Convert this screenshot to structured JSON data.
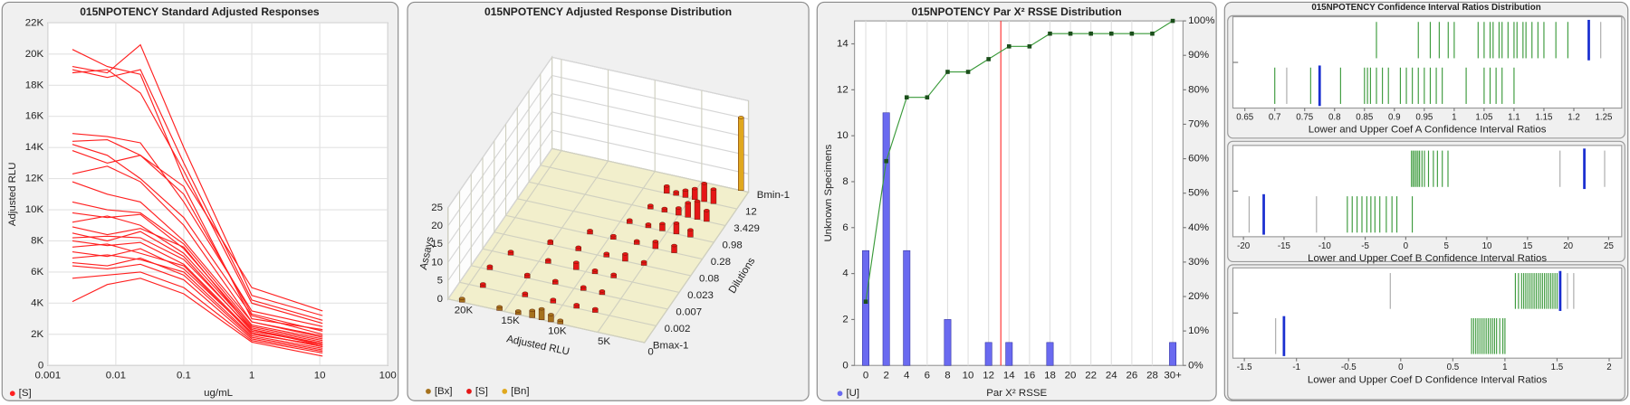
{
  "chart_data": [
    {
      "type": "line",
      "title": "015NPOTENCY Standard Adjusted Responses",
      "xlabel": "ug/mL",
      "ylabel": "Adjusted RLU",
      "xlog": true,
      "grid": true,
      "color": "#ff2020",
      "legend": "[S]",
      "xlim": [
        0.001,
        100
      ],
      "xticks": [
        0.001,
        0.01,
        0.1,
        1,
        10,
        100
      ],
      "ylim": [
        0,
        22000
      ],
      "yticks": [
        0,
        {
          "value": 2000,
          "label": "2K"
        },
        {
          "value": 4000,
          "label": "4K"
        },
        {
          "value": 6000,
          "label": "6K"
        },
        {
          "value": 8000,
          "label": "8K"
        },
        {
          "value": 10000,
          "label": "10K"
        },
        {
          "value": 12000,
          "label": "12K"
        },
        {
          "value": 14000,
          "label": "14K"
        },
        {
          "value": 16000,
          "label": "16K"
        },
        {
          "value": 18000,
          "label": "18K"
        },
        {
          "value": 20000,
          "label": "20K"
        },
        {
          "value": 22000,
          "label": "22K"
        }
      ],
      "x": [
        0.0023,
        0.0075,
        0.023,
        0.1,
        1,
        11
      ],
      "series": [
        {
          "values": [
            20300,
            19200,
            18700,
            12000,
            5000,
            3500
          ]
        },
        {
          "values": [
            19200,
            18800,
            20600,
            14000,
            4500,
            3200
          ]
        },
        {
          "values": [
            19000,
            18500,
            19000,
            13000,
            4200,
            2900
          ]
        },
        {
          "values": [
            18800,
            19000,
            17500,
            12500,
            4000,
            2700
          ]
        },
        {
          "values": [
            14900,
            14700,
            14300,
            10500,
            3500,
            2500
          ]
        },
        {
          "values": [
            14400,
            14500,
            13500,
            11000,
            3300,
            2200
          ]
        },
        {
          "values": [
            14200,
            13500,
            12000,
            9500,
            3200,
            2000
          ]
        },
        {
          "values": [
            13800,
            13000,
            13500,
            11500,
            3000,
            2300
          ]
        },
        {
          "values": [
            12300,
            12800,
            11800,
            9000,
            2800,
            1800
          ]
        },
        {
          "values": [
            11800,
            11000,
            10500,
            8000,
            2800,
            1900
          ]
        },
        {
          "values": [
            10500,
            10000,
            9800,
            7800,
            2600,
            1700
          ]
        },
        {
          "values": [
            9800,
            9500,
            9700,
            7500,
            2500,
            1600
          ]
        },
        {
          "values": [
            9200,
            9600,
            9000,
            7200,
            2400,
            1500
          ]
        },
        {
          "values": [
            8900,
            8400,
            8800,
            7600,
            2300,
            1400
          ]
        },
        {
          "values": [
            8500,
            8000,
            8600,
            7000,
            2200,
            1400
          ]
        },
        {
          "values": [
            8200,
            8300,
            8200,
            6800,
            2300,
            1300
          ]
        },
        {
          "values": [
            8000,
            7700,
            7900,
            6500,
            2100,
            1200
          ]
        },
        {
          "values": [
            7600,
            7800,
            7200,
            6400,
            2000,
            1300
          ]
        },
        {
          "values": [
            7300,
            7000,
            7500,
            6200,
            2100,
            1200
          ]
        },
        {
          "values": [
            6900,
            7100,
            6800,
            6000,
            1900,
            1100
          ]
        },
        {
          "values": [
            6600,
            6400,
            6900,
            5800,
            1800,
            1000
          ]
        },
        {
          "values": [
            6400,
            6200,
            6500,
            5500,
            1700,
            900
          ]
        },
        {
          "values": [
            5600,
            5800,
            6000,
            5000,
            1600,
            800
          ]
        },
        {
          "values": [
            4100,
            5200,
            5600,
            4600,
            1500,
            600
          ]
        }
      ]
    },
    {
      "type": "bar3d",
      "title": "015NPOTENCY Adjusted Response Distribution",
      "xlabel": "Adjusted RLU",
      "ylabel": "Assays",
      "dilution_label": "Dilutions",
      "xlim": [
        0,
        21000
      ],
      "xticks": [
        {
          "value": 20000,
          "label": "20K"
        },
        {
          "value": 15000,
          "label": "15K"
        },
        {
          "value": 10000,
          "label": "10K"
        },
        {
          "value": 5000,
          "label": "5K"
        },
        0
      ],
      "ylim": [
        0,
        25
      ],
      "yticks": [
        0,
        5,
        10,
        15,
        20,
        25
      ],
      "categories": [
        "Bmax-1",
        "0.002",
        "0.007",
        "0.023",
        "0.08",
        "0.28",
        "0.98",
        "3.429",
        "12",
        "Bmin-1"
      ],
      "series": [
        {
          "name": "[Bx]",
          "color": "#a5711c",
          "x": [
            19500,
            15500,
            13500,
            12000,
            11000,
            10000,
            9000
          ],
          "dilution": [
            "Bmax-1",
            "Bmax-1",
            "Bmax-1",
            "Bmax-1",
            "Bmax-1",
            "Bmax-1",
            "Bmax-1"
          ],
          "values": [
            1,
            1,
            1,
            2,
            3,
            2,
            1
          ]
        },
        {
          "name": "[S]",
          "color": "#e51616",
          "x": [
            2500,
            3500,
            4500,
            5500,
            6500,
            7500,
            2000,
            3000,
            4000,
            5000,
            6500,
            8000,
            2500,
            4000,
            5500,
            7000,
            9000,
            3000,
            5000,
            7000,
            9500,
            12000,
            5000,
            7000,
            9000,
            12000,
            15000,
            7000,
            9000,
            11000,
            14000,
            18000,
            7000,
            9000,
            12000,
            15000,
            19000,
            6500,
            8500,
            11000,
            14000,
            18500
          ],
          "dilution": [
            "12",
            "12",
            "12",
            "12",
            "12",
            "12",
            "3.429",
            "3.429",
            "3.429",
            "3.429",
            "3.429",
            "3.429",
            "0.98",
            "0.98",
            "0.98",
            "0.98",
            "0.98",
            "0.28",
            "0.28",
            "0.28",
            "0.28",
            "0.28",
            "0.08",
            "0.08",
            "0.08",
            "0.08",
            "0.08",
            "0.023",
            "0.023",
            "0.023",
            "0.023",
            "0.023",
            "0.007",
            "0.007",
            "0.007",
            "0.007",
            "0.007",
            "0.002",
            "0.002",
            "0.002",
            "0.002",
            "0.002"
          ],
          "values": [
            4,
            5,
            3,
            2,
            1,
            2,
            3,
            5,
            4,
            2,
            1,
            1,
            2,
            3,
            2,
            1,
            1,
            2,
            2,
            1,
            1,
            1,
            1,
            2,
            1,
            1,
            1,
            1,
            1,
            2,
            1,
            1,
            1,
            1,
            1,
            1,
            1,
            1,
            1,
            1,
            1,
            1
          ]
        },
        {
          "name": "[Bn]",
          "color": "#e0a81e",
          "x": [
            800
          ],
          "dilution": [
            "Bmin-1"
          ],
          "values": [
            20
          ]
        }
      ]
    },
    {
      "type": "bar",
      "title": "015NPOTENCY Par X² RSSE Distribution",
      "xlabel": "Par X² RSSE",
      "ylabel": "Unknown Specimens",
      "grid": "x",
      "xlim": [
        -1.1,
        31
      ],
      "xticks": [
        0,
        2,
        4,
        6,
        8,
        10,
        12,
        14,
        16,
        18,
        20,
        22,
        24,
        26,
        28,
        {
          "value": 30,
          "label": "30+"
        }
      ],
      "ylim": [
        0,
        15
      ],
      "yticks": [
        0,
        2,
        4,
        6,
        8,
        10,
        12,
        14
      ],
      "y2lim": [
        0,
        100
      ],
      "y2ticks": [
        {
          "value": 0,
          "label": "0%"
        },
        {
          "value": 10,
          "label": "10%"
        },
        {
          "value": 20,
          "label": "20%"
        },
        {
          "value": 30,
          "label": "30%"
        },
        {
          "value": 40,
          "label": "40%"
        },
        {
          "value": 50,
          "label": "50%"
        },
        {
          "value": 60,
          "label": "60%"
        },
        {
          "value": 70,
          "label": "70%"
        },
        {
          "value": 80,
          "label": "80%"
        },
        {
          "value": 90,
          "label": "90%"
        },
        {
          "value": 100,
          "label": "100%"
        }
      ],
      "x": [
        0,
        2,
        4,
        6,
        8,
        10,
        12,
        14,
        16,
        18,
        20,
        22,
        24,
        26,
        28,
        30
      ],
      "threshold": 13.2,
      "threshold_color": "#ff3030",
      "series": [
        {
          "name": "[U]",
          "color": "#6a6af0",
          "values": [
            5,
            11,
            5,
            0,
            2,
            0,
            1,
            1,
            0,
            1,
            0,
            0,
            0,
            0,
            0,
            1
          ]
        },
        {
          "color": "#3a9a3a",
          "axis": "y2",
          "values": [
            18.5,
            59.3,
            77.8,
            77.8,
            85.2,
            85.2,
            88.9,
            92.6,
            92.6,
            96.3,
            96.3,
            96.3,
            96.3,
            96.3,
            96.3,
            100
          ]
        }
      ]
    },
    {
      "type": "strip",
      "title": "015NPOTENCY Confidence Interval Ratios Distribution",
      "color": "#3c9a3c",
      "reference_color": "#1a2fd0",
      "outlier_color": "#aaaaaa",
      "panels": [
        {
          "xlabel": "Lower and Upper Coef A Confidence Interval Ratios",
          "xlim": [
            0.63,
            1.28
          ],
          "xticks": [
            0.65,
            0.7,
            0.75,
            0.8,
            0.85,
            0.9,
            0.95,
            1,
            1.05,
            1.1,
            1.15,
            1.2,
            1.25
          ],
          "rows": [
            {
              "values": [
                0.87,
                0.94,
                0.96,
                0.975,
                0.99,
                1.0,
                1.04,
                1.05,
                1.06,
                1.065,
                1.075,
                1.08,
                1.09,
                1.1,
                1.105,
                1.115,
                1.12,
                1.13,
                1.14,
                1.15,
                1.17,
                1.19
              ],
              "reference": 1.225,
              "outliers": [
                1.245
              ]
            },
            {
              "values": [
                0.7,
                0.76,
                0.81,
                0.85,
                0.855,
                0.86,
                0.87,
                0.88,
                0.89,
                0.91,
                0.92,
                0.93,
                0.94,
                0.95,
                0.96,
                0.97,
                0.98,
                1.02,
                1.05,
                1.06,
                1.07,
                1.08,
                1.1
              ],
              "reference": 0.775,
              "outliers": [
                0.72
              ]
            }
          ]
        },
        {
          "xlabel": "Lower and Upper Coef B Confidence Interval Ratios",
          "xlim": [
            -21.3,
            26.6
          ],
          "xticks": [
            -20,
            -15,
            -10,
            -5,
            0,
            5,
            10,
            15,
            20,
            25
          ],
          "rows": [
            {
              "values": [
                0.7,
                0.9,
                1.1,
                1.3,
                1.5,
                1.7,
                2.0,
                2.3,
                2.8,
                3.4,
                3.9,
                4.5,
                5.2
              ],
              "reference": 22,
              "outliers": [
                19,
                24.5
              ]
            },
            {
              "values": [
                -7.2,
                -6.6,
                -6,
                -5.4,
                -4.8,
                -4.3,
                -3.8,
                -3.2,
                -2.4,
                -1.7,
                -1.1,
                0.8
              ],
              "reference": -17.5,
              "outliers": [
                -11,
                -19.3
              ]
            }
          ]
        },
        {
          "xlabel": "Lower and Upper Coef D Confidence Interval Ratios",
          "xlim": [
            -1.61,
            2.12
          ],
          "xticks": [
            -1.5,
            -1,
            -0.5,
            0,
            0.5,
            1,
            1.5,
            2
          ],
          "rows": [
            {
              "values": [
                1.1,
                1.13,
                1.16,
                1.18,
                1.2,
                1.22,
                1.24,
                1.26,
                1.28,
                1.3,
                1.32,
                1.34,
                1.36,
                1.38,
                1.4,
                1.42,
                1.44,
                1.46,
                1.48,
                1.5
              ],
              "reference": 1.53,
              "outliers": [
                -0.1,
                1.6,
                1.66
              ]
            },
            {
              "values": [
                0.68,
                0.7,
                0.72,
                0.74,
                0.76,
                0.78,
                0.8,
                0.82,
                0.84,
                0.86,
                0.88,
                0.9,
                0.92,
                0.95,
                0.98,
                1.0
              ],
              "reference": -1.12,
              "outliers": [
                -1.2
              ]
            }
          ]
        }
      ]
    }
  ]
}
